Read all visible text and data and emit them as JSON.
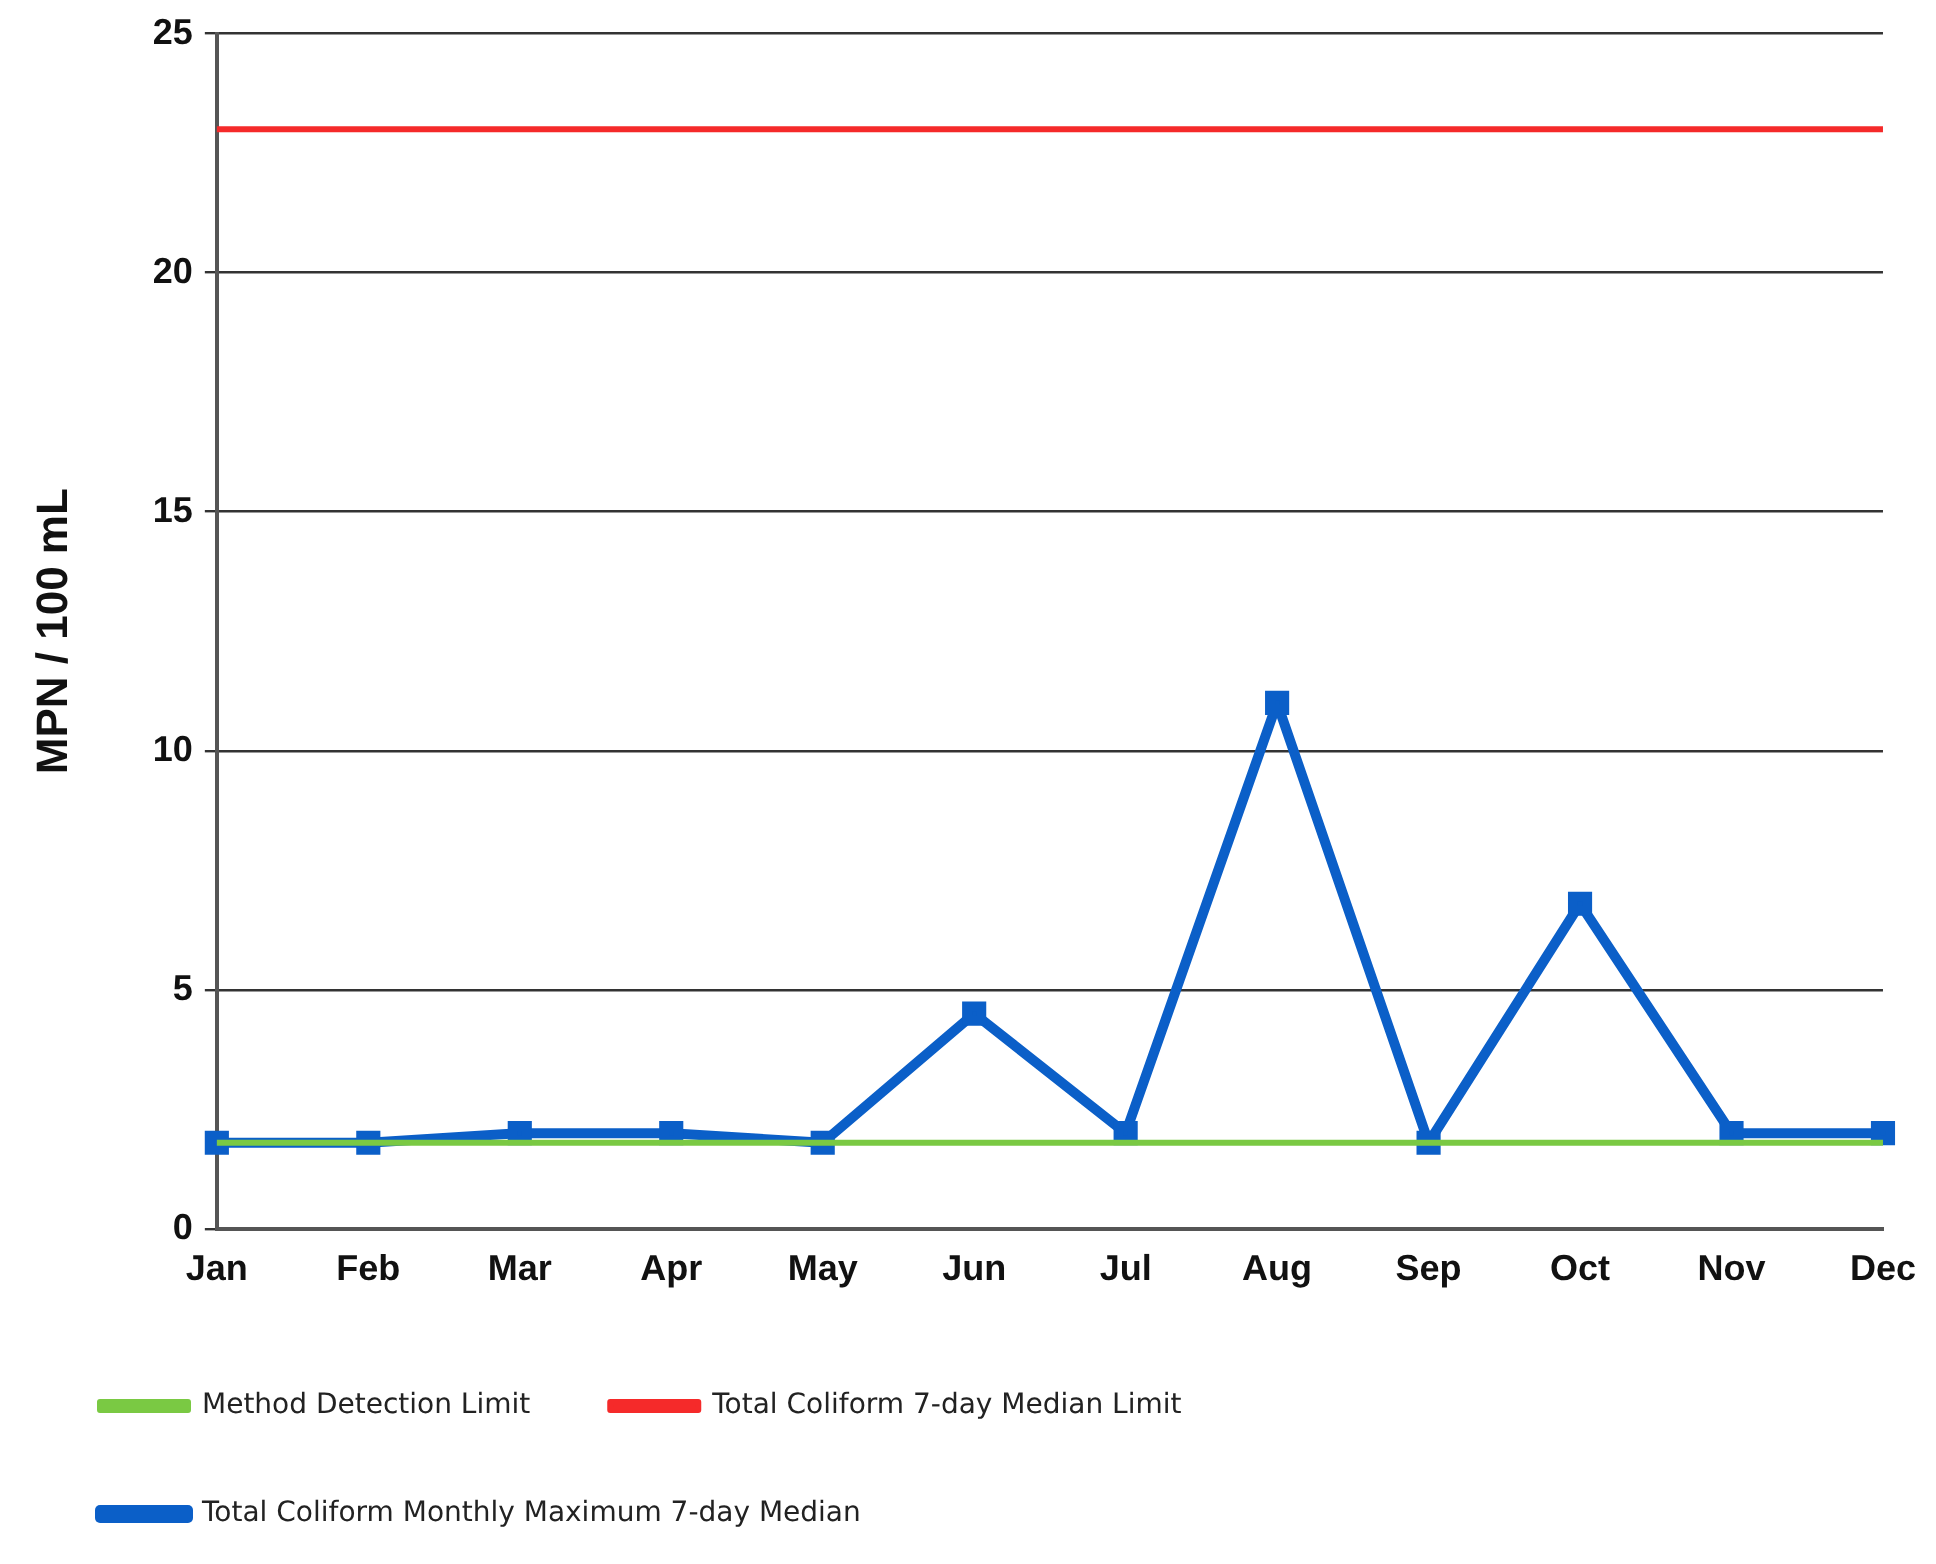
{
  "chart_data": {
    "type": "line",
    "ylabel": "MPN / 100 mL",
    "categories": [
      "Jan",
      "Feb",
      "Mar",
      "Apr",
      "May",
      "Jun",
      "Jul",
      "Aug",
      "Sep",
      "Oct",
      "Nov",
      "Dec"
    ],
    "series": [
      {
        "name": "Total Coliform Monthly Maximum 7-day Median",
        "color": "#0b5fc8",
        "marker": "square",
        "values": [
          1.8,
          1.8,
          2,
          2,
          1.8,
          4.5,
          2,
          11,
          1.8,
          6.8,
          2,
          2
        ]
      },
      {
        "name": "Total Coliform 7-day Median Limit",
        "color": "#f52a2a",
        "marker": "none",
        "values": [
          23,
          23,
          23,
          23,
          23,
          23,
          23,
          23,
          23,
          23,
          23,
          23
        ]
      },
      {
        "name": "Method Detection Limit",
        "color": "#7ac943",
        "marker": "none",
        "values": [
          1.8,
          1.8,
          1.8,
          1.8,
          1.8,
          1.8,
          1.8,
          1.8,
          1.8,
          1.8,
          1.8,
          1.8
        ]
      }
    ],
    "ylim": [
      0,
      25
    ],
    "yticks": [
      0,
      5,
      10,
      15,
      20,
      25
    ],
    "grid": "y",
    "legend": "bottom"
  }
}
